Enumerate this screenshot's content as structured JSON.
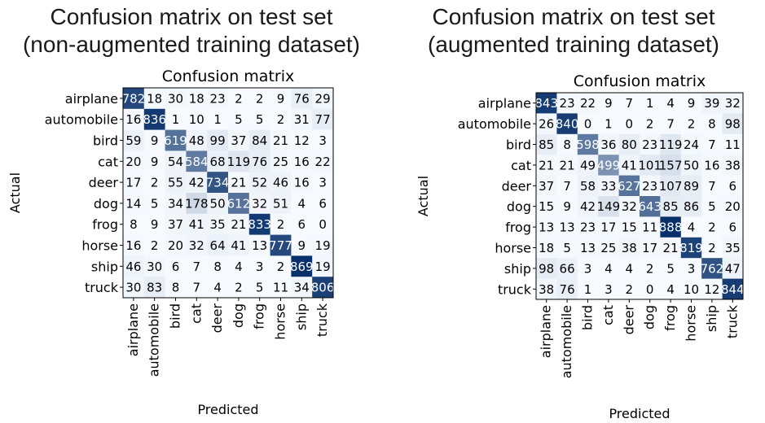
{
  "captions": [
    {
      "line1": "Confusion matrix on test set",
      "line2": "(non-augmented training dataset)"
    },
    {
      "line1": "Confusion matrix on test set",
      "line2": "(augmented training dataset)"
    }
  ],
  "colors": {
    "cell_low": "#f7fbff",
    "cell_high": "#08306b",
    "text_dark": "#000000",
    "text_light": "#ffffff",
    "frame": "#000000"
  },
  "chart_data": [
    {
      "type": "heatmap",
      "title": "Confusion matrix",
      "xlabel": "Predicted",
      "ylabel": "Actual",
      "labels": [
        "airplane",
        "automobile",
        "bird",
        "cat",
        "deer",
        "dog",
        "frog",
        "horse",
        "ship",
        "truck"
      ],
      "matrix": [
        [
          782,
          18,
          30,
          18,
          23,
          2,
          2,
          9,
          76,
          29
        ],
        [
          16,
          836,
          1,
          10,
          1,
          5,
          5,
          2,
          31,
          77
        ],
        [
          59,
          9,
          619,
          48,
          99,
          37,
          84,
          21,
          12,
          3
        ],
        [
          20,
          9,
          54,
          584,
          68,
          119,
          76,
          25,
          16,
          22
        ],
        [
          17,
          2,
          55,
          42,
          734,
          21,
          52,
          46,
          16,
          3
        ],
        [
          14,
          5,
          34,
          178,
          50,
          612,
          32,
          51,
          4,
          6
        ],
        [
          8,
          9,
          37,
          41,
          35,
          21,
          833,
          2,
          6,
          0
        ],
        [
          16,
          2,
          20,
          32,
          64,
          41,
          13,
          777,
          9,
          19
        ],
        [
          46,
          30,
          6,
          7,
          8,
          4,
          3,
          2,
          869,
          19
        ],
        [
          30,
          83,
          8,
          7,
          4,
          2,
          5,
          11,
          34,
          806
        ]
      ]
    },
    {
      "type": "heatmap",
      "title": "Confusion matrix",
      "xlabel": "Predicted",
      "ylabel": "Actual",
      "labels": [
        "airplane",
        "automobile",
        "bird",
        "cat",
        "deer",
        "dog",
        "frog",
        "horse",
        "ship",
        "truck"
      ],
      "matrix": [
        [
          843,
          23,
          22,
          9,
          7,
          1,
          4,
          9,
          39,
          32
        ],
        [
          26,
          840,
          0,
          1,
          0,
          2,
          7,
          2,
          8,
          98
        ],
        [
          85,
          8,
          598,
          36,
          80,
          23,
          119,
          24,
          7,
          11
        ],
        [
          21,
          21,
          49,
          499,
          41,
          101,
          157,
          50,
          16,
          38
        ],
        [
          37,
          7,
          58,
          33,
          627,
          23,
          107,
          89,
          7,
          6
        ],
        [
          15,
          9,
          42,
          149,
          32,
          643,
          85,
          86,
          5,
          20
        ],
        [
          13,
          13,
          23,
          17,
          15,
          11,
          888,
          4,
          2,
          6
        ],
        [
          18,
          5,
          13,
          25,
          38,
          17,
          21,
          819,
          2,
          35
        ],
        [
          98,
          66,
          3,
          4,
          4,
          2,
          5,
          3,
          762,
          47
        ],
        [
          38,
          76,
          1,
          3,
          2,
          0,
          4,
          10,
          12,
          844
        ]
      ]
    }
  ]
}
